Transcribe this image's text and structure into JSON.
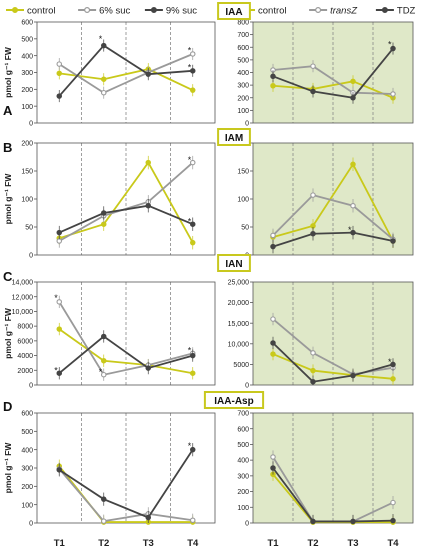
{
  "legend_left": [
    {
      "label": "control",
      "color": "#c9c91a",
      "marker": "filled"
    },
    {
      "label": "6% suc",
      "color": "#9a9a9a",
      "marker": "open"
    },
    {
      "label": "9% suc",
      "color": "#444444",
      "marker": "filled"
    }
  ],
  "legend_right": [
    {
      "label": "control",
      "color": "#c9c91a",
      "marker": "filled"
    },
    {
      "label": "transZ",
      "color": "#9a9a9a",
      "marker": "open"
    },
    {
      "label": "TDZ",
      "color": "#444444",
      "marker": "filled"
    }
  ],
  "ylabel": "pmol g⁻¹ FW",
  "x_labels": [
    "T1",
    "T2",
    "T3",
    "T4"
  ],
  "colors": {
    "control": "#c9c91a",
    "series2": "#9a9a9a",
    "series3": "#444444",
    "right_panel_bg": "#dfe8c8",
    "title_box": "#c8c81e"
  },
  "chart_data": [
    {
      "panel": "A",
      "title": "IAA",
      "type": "line",
      "left": {
        "ylim": [
          0,
          600
        ],
        "yticks": [
          "0",
          "100",
          "200",
          "300",
          "400",
          "500",
          "600"
        ],
        "series": [
          {
            "name": "control",
            "values": [
              295,
              260,
              320,
              195
            ]
          },
          {
            "name": "6% suc",
            "values": [
              350,
              180,
              300,
              410
            ]
          },
          {
            "name": "9% suc",
            "values": [
              160,
              460,
              290,
              310
            ]
          }
        ],
        "stars": [
          {
            "x": 2,
            "y": 500
          },
          {
            "x": 4,
            "y": 430
          },
          {
            "x": 4,
            "y": 330
          }
        ]
      },
      "right": {
        "ylim": [
          0,
          800
        ],
        "yticks": [
          "0",
          "100",
          "200",
          "300",
          "400",
          "500",
          "600",
          "700",
          "800"
        ],
        "series": [
          {
            "name": "control",
            "values": [
              295,
              270,
              330,
              200
            ]
          },
          {
            "name": "transZ",
            "values": [
              420,
              450,
              240,
              230
            ]
          },
          {
            "name": "TDZ",
            "values": [
              370,
              250,
              200,
              590
            ]
          }
        ],
        "stars": [
          {
            "x": 4,
            "y": 620
          }
        ]
      }
    },
    {
      "panel": "B",
      "title": "IAM",
      "type": "line",
      "left": {
        "ylim": [
          0,
          200
        ],
        "yticks": [
          "0",
          "50",
          "100",
          "150",
          "200"
        ],
        "series": [
          {
            "name": "control",
            "values": [
              30,
              55,
              165,
              22
            ]
          },
          {
            "name": "6% suc",
            "values": [
              25,
              70,
              95,
              165
            ]
          },
          {
            "name": "9% suc",
            "values": [
              40,
              75,
              88,
              55
            ]
          }
        ],
        "stars": [
          {
            "x": 4,
            "y": 170
          },
          {
            "x": 4,
            "y": 60
          }
        ]
      },
      "right": {
        "ylim": [
          0,
          200
        ],
        "yticks": [
          "0",
          "50",
          "100",
          "150",
          "200"
        ],
        "series": [
          {
            "name": "control",
            "values": [
              32,
              52,
              162,
              25
            ]
          },
          {
            "name": "transZ",
            "values": [
              35,
              107,
              88,
              28
            ]
          },
          {
            "name": "TDZ",
            "values": [
              15,
              38,
              40,
              25
            ]
          }
        ],
        "stars": [
          {
            "x": 3,
            "y": 45
          }
        ]
      }
    },
    {
      "panel": "C",
      "title": "IAN",
      "type": "line",
      "left": {
        "ylim": [
          0,
          14000
        ],
        "yticks": [
          "0",
          "2000",
          "4000",
          "6000",
          "8000",
          "10,000",
          "12,000",
          "14,000"
        ],
        "series": [
          {
            "name": "control",
            "values": [
              7600,
              3300,
              2700,
              1600
            ]
          },
          {
            "name": "6% suc",
            "values": [
              11300,
              1400,
              2700,
              4300
            ]
          },
          {
            "name": "9% suc",
            "values": [
              1600,
              6600,
              2300,
              4000
            ]
          }
        ],
        "stars": [
          {
            "x": 1,
            "y": 11800
          },
          {
            "x": 1,
            "y": 2000
          },
          {
            "x": 2,
            "y": 1800
          },
          {
            "x": 4,
            "y": 4700
          }
        ]
      },
      "right": {
        "ylim": [
          0,
          25000
        ],
        "yticks": [
          "0",
          "5000",
          "10,000",
          "15,000",
          "20,000",
          "25,000"
        ],
        "series": [
          {
            "name": "control",
            "values": [
              7500,
              3500,
              2400,
              1500
            ]
          },
          {
            "name": "transZ",
            "values": [
              16000,
              7800,
              2600,
              4200
            ]
          },
          {
            "name": "TDZ",
            "values": [
              10200,
              800,
              2300,
              5000
            ]
          }
        ],
        "stars": [
          {
            "x": 4,
            "y": 5600
          }
        ]
      }
    },
    {
      "panel": "D",
      "title": "IAA-Asp",
      "type": "line",
      "left": {
        "ylim": [
          0,
          600
        ],
        "yticks": [
          "0",
          "100",
          "200",
          "300",
          "400",
          "500",
          "600"
        ],
        "series": [
          {
            "name": "control",
            "values": [
              310,
              5,
              5,
              5
            ]
          },
          {
            "name": "6% suc",
            "values": [
              295,
              10,
              50,
              15
            ]
          },
          {
            "name": "9% suc",
            "values": [
              290,
              130,
              30,
              400
            ]
          }
        ],
        "stars": [
          {
            "x": 4,
            "y": 420
          }
        ]
      },
      "right": {
        "ylim": [
          0,
          700
        ],
        "yticks": [
          "0",
          "100",
          "200",
          "300",
          "400",
          "500",
          "600",
          "700"
        ],
        "series": [
          {
            "name": "control",
            "values": [
              310,
              5,
              5,
              5
            ]
          },
          {
            "name": "transZ",
            "values": [
              420,
              10,
              10,
              130
            ]
          },
          {
            "name": "TDZ",
            "values": [
              350,
              10,
              10,
              15
            ]
          }
        ],
        "stars": []
      }
    }
  ]
}
